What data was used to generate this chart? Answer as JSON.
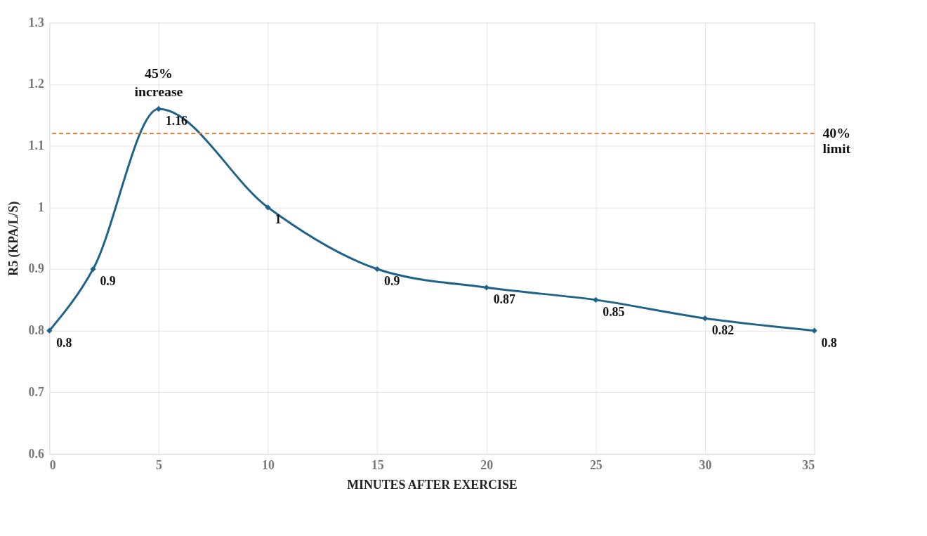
{
  "chart_data": {
    "type": "line",
    "xlabel": "MINUTES AFTER EXERCISE",
    "ylabel": "R5 (KPA/L/S)",
    "x": [
      0,
      2,
      5,
      10,
      15,
      20,
      25,
      30,
      35
    ],
    "series": [
      {
        "color": "#1f6388",
        "values": [
          0.8,
          0.9,
          1.16,
          1,
          0.9,
          0.87,
          0.85,
          0.82,
          0.8
        ]
      }
    ],
    "xlim": [
      0,
      35
    ],
    "xticks": [
      0,
      5,
      10,
      15,
      20,
      25,
      30,
      35
    ],
    "ylim": [
      0.6,
      1.3
    ],
    "yticks": [
      0.6,
      0.7,
      0.8,
      0.9,
      1,
      1.1,
      1.2,
      1.3
    ],
    "ref_lines": [
      {
        "axis": "y",
        "value": 1.12,
        "label": "40% limit",
        "color": "#ed7d31",
        "line_style": "dashed"
      }
    ],
    "annotations": [
      {
        "text": "45% increase",
        "x": 5,
        "y": 1.16
      }
    ],
    "data_labels": true,
    "grid": true,
    "marker": "diamond",
    "line_style": "solid"
  }
}
